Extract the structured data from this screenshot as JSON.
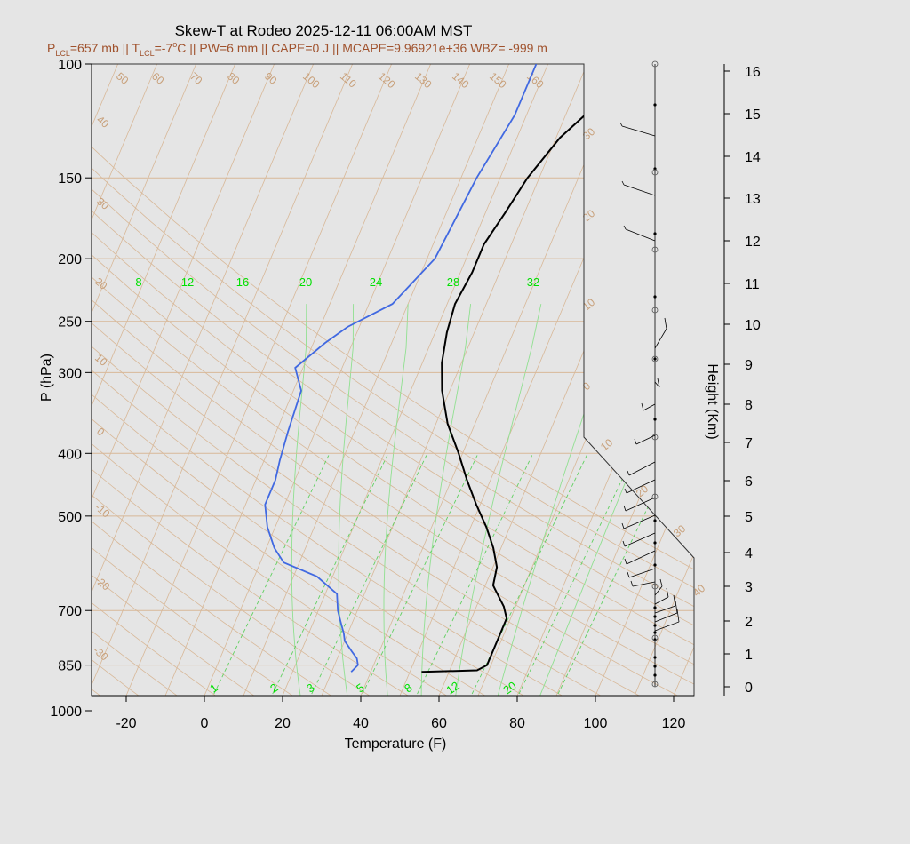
{
  "chart_data": {
    "type": "line",
    "title": "Skew-T at Rodeo 2025-12-11 06:00AM MST",
    "subtitle": {
      "lcl_p_label": "P",
      "lcl_sub": "LCL",
      "lcl_p_value": "=657 mb || T",
      "lcl_t_sub": "LCL",
      "lcl_t_value": "=-7",
      "deg": "o",
      "rest": "C || PW=6 mm || CAPE=0 J || MCAPE=9.96921e+36 WBZ= -999 m"
    },
    "xlabel": "Temperature (F)",
    "ylabel": "P (hPa)",
    "y2label": "Height (Km)",
    "x_ticks": [
      "-20",
      "0",
      "20",
      "40",
      "60",
      "80",
      "100",
      "120"
    ],
    "x_tick_values": [
      -20,
      0,
      20,
      40,
      60,
      80,
      100,
      120
    ],
    "xlim": [
      -29,
      125
    ],
    "y_ticks": [
      "100",
      "150",
      "200",
      "250",
      "300",
      "400",
      "500",
      "700",
      "850",
      "1000"
    ],
    "y_tick_values": [
      100,
      150,
      200,
      250,
      300,
      400,
      500,
      700,
      850,
      1000
    ],
    "ylim": [
      1030,
      100
    ],
    "y_scale": "log",
    "height_ticks": [
      "0",
      "1",
      "2",
      "3",
      "4",
      "5",
      "6",
      "7",
      "8",
      "9",
      "10",
      "11",
      "12",
      "13",
      "14",
      "15",
      "16"
    ],
    "isotherm_labels": [
      "50",
      "60",
      "70",
      "80",
      "90",
      "100",
      "110",
      "120",
      "130",
      "140",
      "150",
      "160",
      "40",
      "30",
      "20",
      "10",
      "0",
      "-10",
      "-20",
      "-30"
    ],
    "dry_adiabat_labels": [
      "30",
      "20",
      "10",
      "0",
      "10",
      "20",
      "30",
      "40"
    ],
    "mixing_ratio_labels_top": [
      "8",
      "12",
      "16",
      "20",
      "24",
      "28",
      "32"
    ],
    "mixing_ratio_labels_bottom": [
      "1",
      "2",
      "3",
      "5",
      "8",
      "12",
      "20"
    ],
    "series": [
      {
        "name": "",
        "color": "#000000",
        "points": [
          [
            871,
            53
          ],
          [
            866,
            67
          ],
          [
            850,
            69
          ],
          [
            800,
            69
          ],
          [
            760,
            69
          ],
          [
            720,
            69
          ],
          [
            690,
            67
          ],
          [
            650,
            63
          ],
          [
            640,
            62
          ],
          [
            600,
            61
          ],
          [
            560,
            58
          ],
          [
            520,
            54
          ],
          [
            480,
            49
          ],
          [
            440,
            44
          ],
          [
            400,
            39
          ],
          [
            360,
            33
          ],
          [
            320,
            28
          ],
          [
            290,
            25
          ],
          [
            260,
            23
          ],
          [
            235,
            22
          ],
          [
            210,
            23
          ],
          [
            190,
            23
          ],
          [
            170,
            25
          ],
          [
            150,
            27
          ],
          [
            130,
            31
          ],
          [
            115,
            37
          ],
          [
            100,
            40
          ]
        ]
      },
      {
        "name": "",
        "color": "#4169e1",
        "points": [
          [
            871,
            35
          ],
          [
            850,
            36
          ],
          [
            830,
            35
          ],
          [
            810,
            33
          ],
          [
            780,
            30
          ],
          [
            760,
            29
          ],
          [
            730,
            27
          ],
          [
            700,
            25
          ],
          [
            660,
            23
          ],
          [
            620,
            16
          ],
          [
            590,
            6
          ],
          [
            560,
            2
          ],
          [
            520,
            -2
          ],
          [
            480,
            -5
          ],
          [
            440,
            -5
          ],
          [
            410,
            -6
          ],
          [
            370,
            -7
          ],
          [
            320,
            -8
          ],
          [
            295,
            -12
          ],
          [
            270,
            -7
          ],
          [
            255,
            -3
          ],
          [
            235,
            6
          ],
          [
            200,
            12
          ],
          [
            150,
            14
          ],
          [
            120,
            17
          ],
          [
            100,
            17
          ]
        ]
      }
    ],
    "wind_barbs_present": true,
    "colors": {
      "background": "#e5e5e5",
      "plot_bg": "#e5e5e5",
      "temperature": "#000000",
      "dewpoint": "#4169e1",
      "isotherms": "#d8b898",
      "mixing_ratio": "#00e000",
      "subtitle": "#a0522d"
    }
  }
}
